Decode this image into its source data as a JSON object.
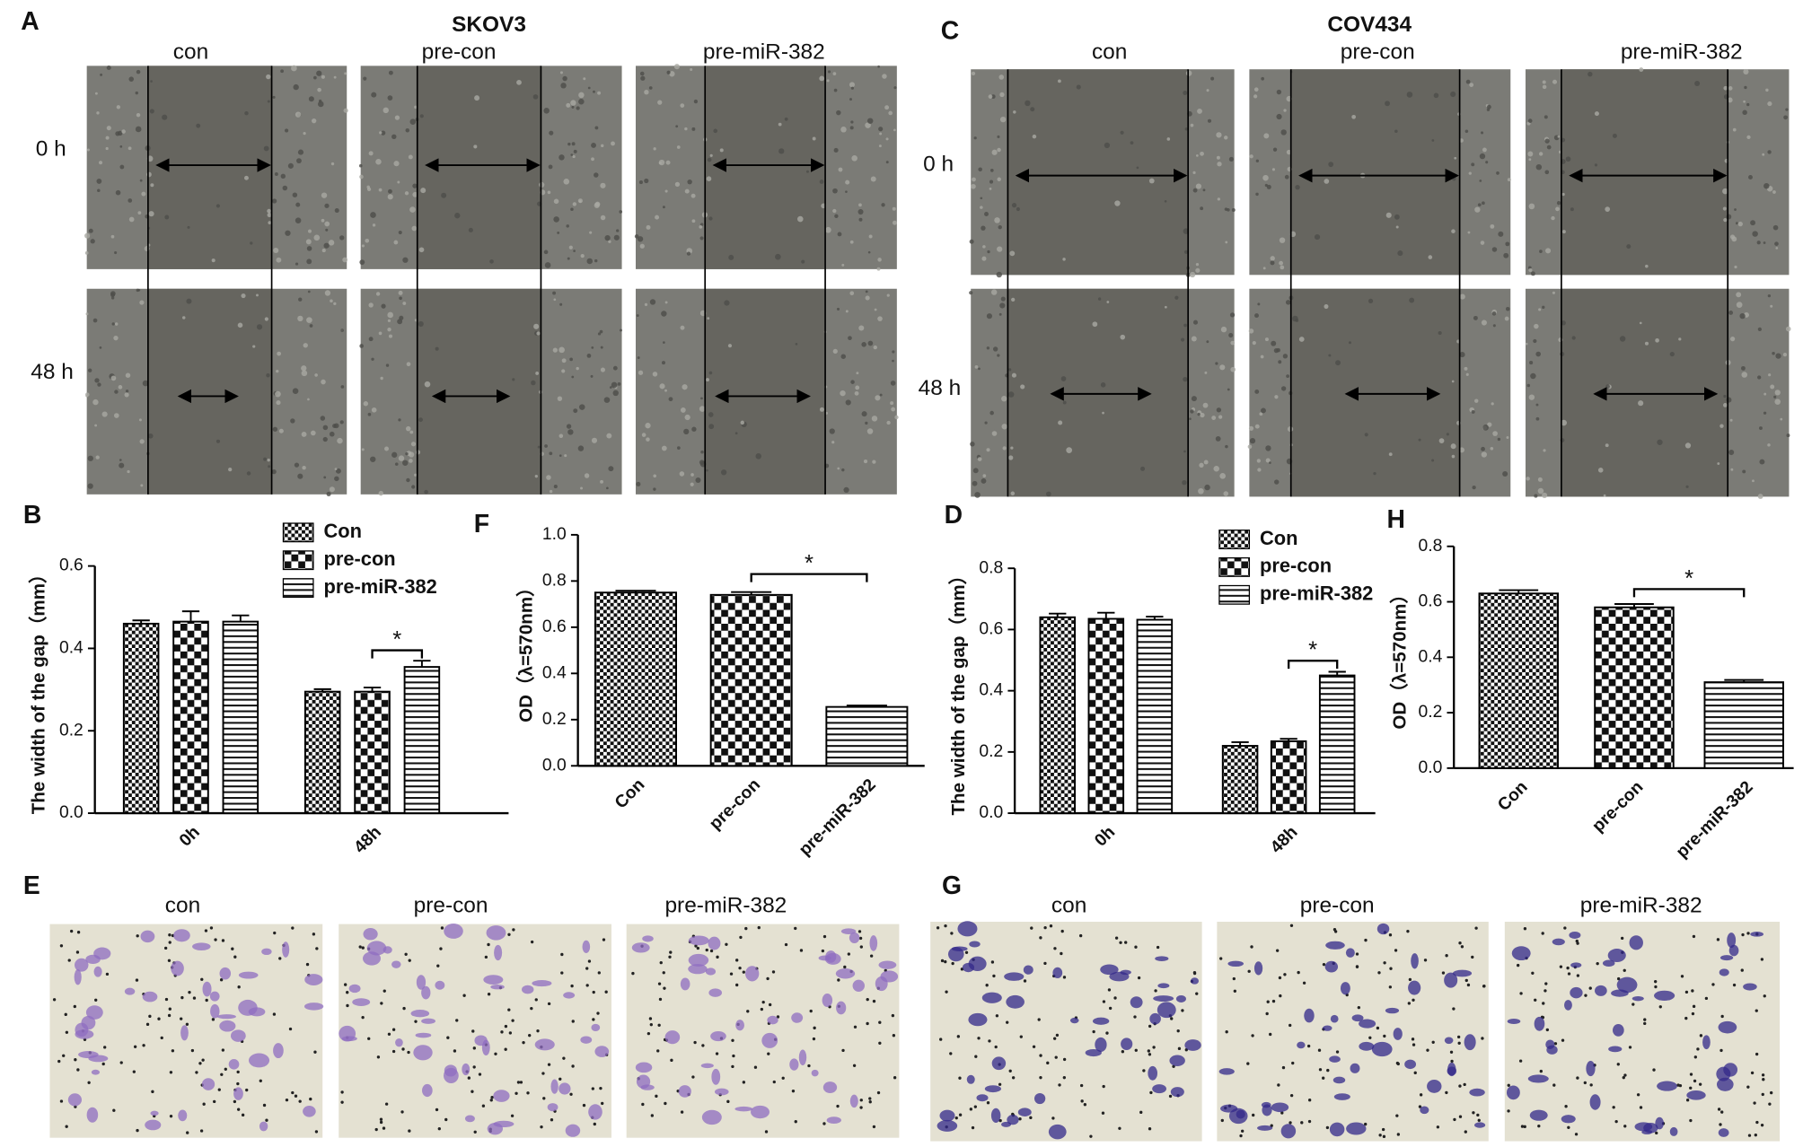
{
  "panels": {
    "A": {
      "label": "A",
      "title": "SKOV3",
      "columns": [
        "con",
        "pre-con",
        "pre-miR-382"
      ],
      "rows": [
        "0 h",
        "48 h"
      ]
    },
    "C": {
      "label": "C",
      "title": "COV434",
      "columns": [
        "con",
        "pre-con",
        "pre-miR-382"
      ],
      "rows": [
        "0 h",
        "48 h"
      ]
    },
    "E": {
      "label": "E",
      "columns": [
        "con",
        "pre-con",
        "pre-miR-382"
      ]
    },
    "G": {
      "label": "G",
      "columns": [
        "con",
        "pre-con",
        "pre-miR-382"
      ]
    }
  },
  "chart_data": [
    {
      "panel": "B",
      "type": "bar",
      "ylabel": "The width of the gap（mm）",
      "categories": [
        "0h",
        "48h"
      ],
      "series": [
        {
          "name": "Con",
          "values": [
            0.46,
            0.295
          ],
          "errors": [
            0.008,
            0.006
          ]
        },
        {
          "name": "pre-con",
          "values": [
            0.465,
            0.295
          ],
          "errors": [
            0.025,
            0.01
          ]
        },
        {
          "name": "pre-miR-382",
          "values": [
            0.465,
            0.355
          ],
          "errors": [
            0.015,
            0.015
          ]
        }
      ],
      "ylim": [
        0,
        0.6
      ],
      "yticks": [
        {
          "value": 0,
          "label": "0.0"
        },
        0.2,
        0.4,
        0.6
      ],
      "annotation": "*"
    },
    {
      "panel": "F",
      "type": "bar",
      "ylabel": "OD（λ=570nm）",
      "categories": [
        "Con",
        "pre-con",
        "pre-miR-382"
      ],
      "values": [
        0.75,
        0.74,
        0.255
      ],
      "errors": [
        0.008,
        0.012,
        0.006
      ],
      "ylim": [
        0,
        1.0
      ],
      "yticks": [
        {
          "value": 0,
          "label": "0.0"
        },
        0.2,
        0.4,
        0.6,
        0.8,
        {
          "value": 1,
          "label": "1.0"
        }
      ],
      "annotation": "*"
    },
    {
      "panel": "D",
      "type": "bar",
      "ylabel": "The width of the gap（mm）",
      "categories": [
        "0h",
        "48h"
      ],
      "series": [
        {
          "name": "Con",
          "values": [
            0.64,
            0.22
          ],
          "errors": [
            0.012,
            0.012
          ]
        },
        {
          "name": "pre-con",
          "values": [
            0.635,
            0.235
          ],
          "errors": [
            0.02,
            0.008
          ]
        },
        {
          "name": "pre-miR-382",
          "values": [
            0.632,
            0.45
          ],
          "errors": [
            0.01,
            0.012
          ]
        }
      ],
      "ylim": [
        0,
        0.8
      ],
      "yticks": [
        {
          "value": 0,
          "label": "0.0"
        },
        0.2,
        0.4,
        0.6,
        0.8
      ],
      "annotation": "*"
    },
    {
      "panel": "H",
      "type": "bar",
      "ylabel": "OD（λ=570nm）",
      "categories": [
        "Con",
        "pre-con",
        "pre-miR-382"
      ],
      "values": [
        0.63,
        0.58,
        0.31
      ],
      "errors": [
        0.012,
        0.012,
        0.008
      ],
      "ylim": [
        0,
        0.8
      ],
      "yticks": [
        {
          "value": 0,
          "label": "0.0"
        },
        0.2,
        0.4,
        0.6,
        0.8
      ],
      "annotation": "*"
    }
  ]
}
